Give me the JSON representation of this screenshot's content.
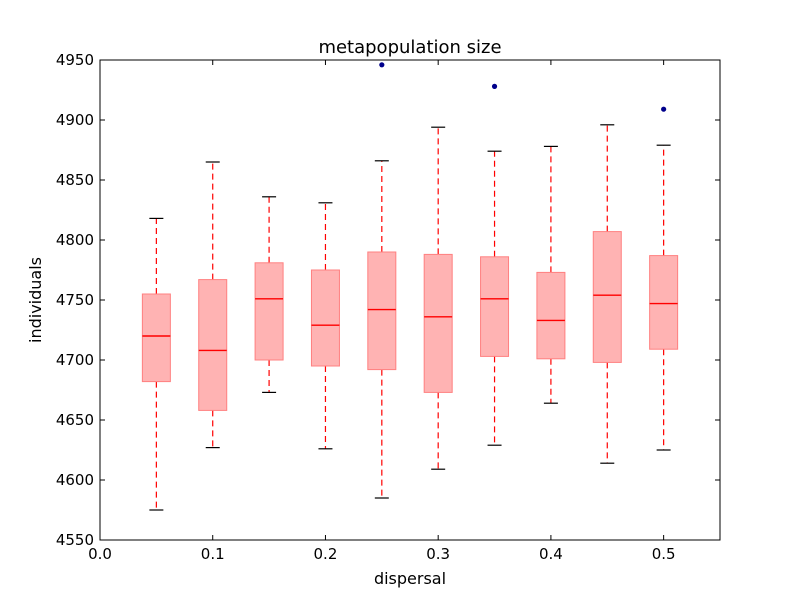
{
  "chart_data": {
    "type": "box",
    "title": "metapopulation size",
    "xlabel": "dispersal",
    "ylabel": "individuals",
    "xlim": [
      0.0,
      0.55
    ],
    "ylim": [
      4550,
      4950
    ],
    "xticks": [
      0.0,
      0.1,
      0.2,
      0.3,
      0.4,
      0.5
    ],
    "xtick_labels": [
      "0.0",
      "0.1",
      "0.2",
      "0.3",
      "0.4",
      "0.5"
    ],
    "yticks": [
      4550,
      4600,
      4650,
      4700,
      4750,
      4800,
      4850,
      4900,
      4950
    ],
    "ytick_labels": [
      "4550",
      "4600",
      "4650",
      "4700",
      "4750",
      "4800",
      "4850",
      "4900",
      "4950"
    ],
    "grid": false,
    "colors": {
      "box_fill": "#ffb3b3",
      "box_edge": "#ff8080",
      "median": "#ff0000",
      "whisker": "#ff0000",
      "cap": "#000000",
      "outlier": "#00008b"
    },
    "boxes": [
      {
        "x": 0.05,
        "whislo": 4575,
        "q1": 4682,
        "med": 4720,
        "q3": 4755,
        "whishi": 4818,
        "fliers": []
      },
      {
        "x": 0.1,
        "whislo": 4627,
        "q1": 4658,
        "med": 4708,
        "q3": 4767,
        "whishi": 4865,
        "fliers": []
      },
      {
        "x": 0.15,
        "whislo": 4673,
        "q1": 4700,
        "med": 4751,
        "q3": 4781,
        "whishi": 4836,
        "fliers": []
      },
      {
        "x": 0.2,
        "whislo": 4626,
        "q1": 4695,
        "med": 4729,
        "q3": 4775,
        "whishi": 4831,
        "fliers": []
      },
      {
        "x": 0.25,
        "whislo": 4585,
        "q1": 4692,
        "med": 4742,
        "q3": 4790,
        "whishi": 4866,
        "fliers": [
          4946
        ]
      },
      {
        "x": 0.3,
        "whislo": 4609,
        "q1": 4673,
        "med": 4736,
        "q3": 4788,
        "whishi": 4894,
        "fliers": []
      },
      {
        "x": 0.35,
        "whislo": 4629,
        "q1": 4703,
        "med": 4751,
        "q3": 4786,
        "whishi": 4874,
        "fliers": [
          4928
        ]
      },
      {
        "x": 0.4,
        "whislo": 4664,
        "q1": 4701,
        "med": 4733,
        "q3": 4773,
        "whishi": 4878,
        "fliers": []
      },
      {
        "x": 0.45,
        "whislo": 4614,
        "q1": 4698,
        "med": 4754,
        "q3": 4807,
        "whishi": 4896,
        "fliers": []
      },
      {
        "x": 0.5,
        "whislo": 4625,
        "q1": 4709,
        "med": 4747,
        "q3": 4787,
        "whishi": 4879,
        "fliers": [
          4909
        ]
      }
    ]
  }
}
